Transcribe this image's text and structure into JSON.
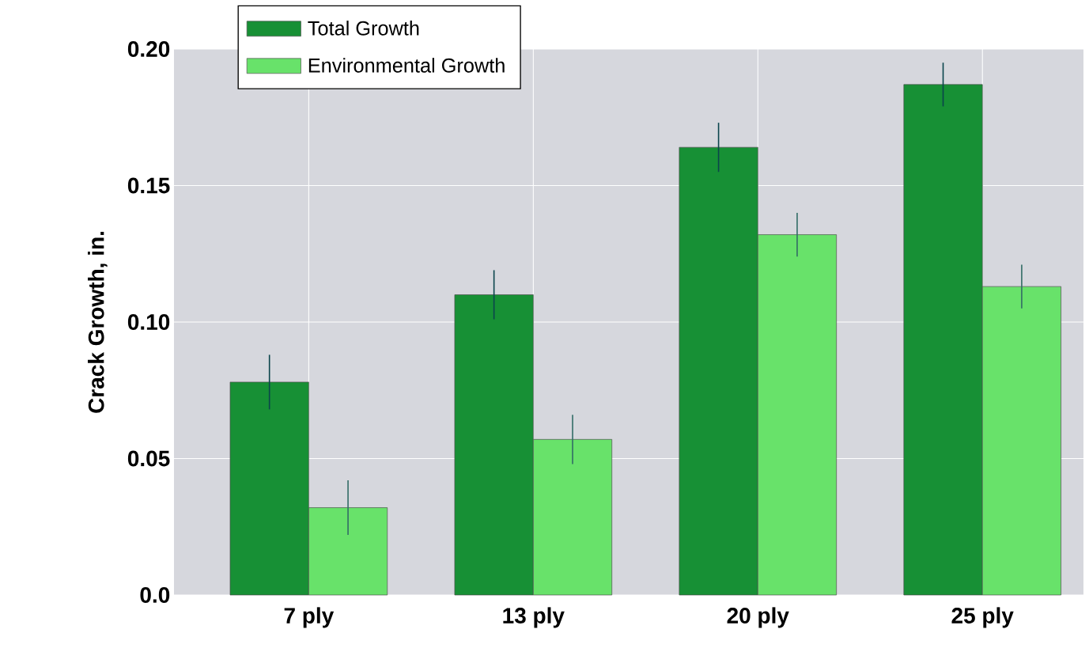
{
  "chart_data": {
    "type": "bar",
    "ylabel": "Crack Growth, in.",
    "categories": [
      "7 ply",
      "13 ply",
      "20 ply",
      "25 ply"
    ],
    "series": [
      {
        "name": "Total Growth",
        "color": "#179035",
        "values": [
          0.078,
          0.11,
          0.164,
          0.187
        ],
        "errors": [
          0.01,
          0.009,
          0.009,
          0.008
        ]
      },
      {
        "name": "Environmental Growth",
        "color": "#68e26a",
        "values": [
          0.032,
          0.057,
          0.132,
          0.113
        ],
        "errors": [
          0.01,
          0.009,
          0.008,
          0.008
        ]
      }
    ],
    "ylim": [
      0,
      0.2
    ],
    "yticks": [
      {
        "value": 0,
        "label": "0.0"
      },
      {
        "value": 0.05,
        "label": "0.05"
      },
      {
        "value": 0.1,
        "label": "0.10"
      },
      {
        "value": 0.15,
        "label": "0.15"
      },
      {
        "value": 0.2,
        "label": "0.20"
      }
    ],
    "grid": true,
    "legend": "top left"
  }
}
